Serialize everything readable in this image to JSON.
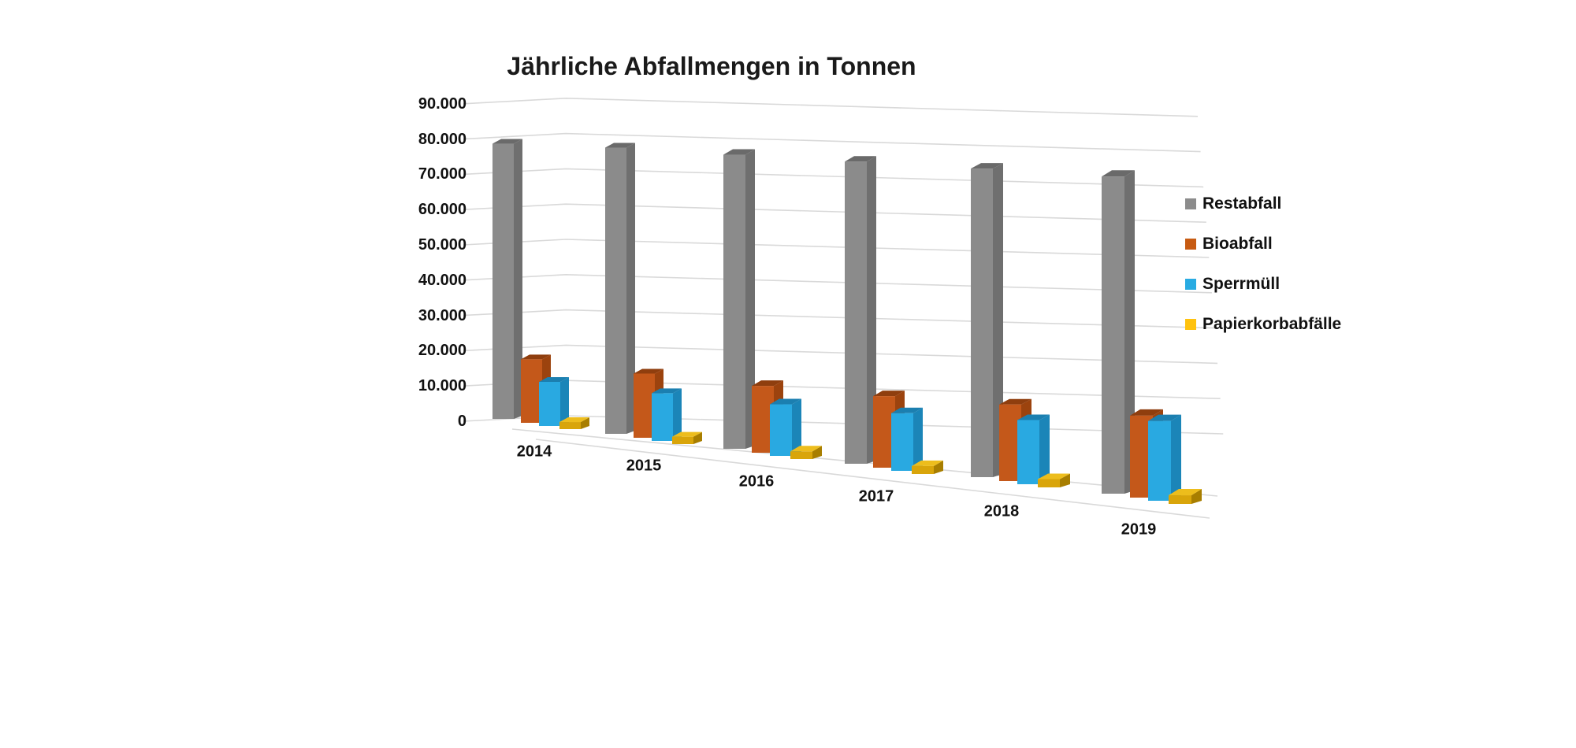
{
  "title": "Jährliche Abfallmengen in Tonnen",
  "chart_data": {
    "type": "bar",
    "subtype": "3d-clustered-column",
    "title": "Jährliche Abfallmengen in Tonnen",
    "xlabel": "",
    "ylabel": "",
    "unit": "Tonnen",
    "categories": [
      "2014",
      "2015",
      "2016",
      "2017",
      "2018",
      "2019"
    ],
    "series": [
      {
        "name": "Restabfall",
        "color": "#8B8B8B",
        "values": [
          78000,
          78000,
          77000,
          76000,
          74500,
          73500
        ]
      },
      {
        "name": "Bioabfall",
        "color": "#C4581A",
        "values": [
          18000,
          17500,
          17500,
          18000,
          18500,
          19000
        ]
      },
      {
        "name": "Sperrmüll",
        "color": "#29A9E1",
        "values": [
          12500,
          13000,
          13500,
          14500,
          15500,
          18500
        ]
      },
      {
        "name": "Papierkorbabfälle",
        "color": "#FFC20E",
        "values": [
          2000,
          2000,
          2000,
          2000,
          2000,
          2000
        ]
      }
    ],
    "ylim": [
      0,
      90000
    ],
    "ytick_step": 10000,
    "ytick_labels": [
      "0",
      "10.000",
      "20.000",
      "30.000",
      "40.000",
      "50.000",
      "60.000",
      "70.000",
      "80.000",
      "90.000"
    ],
    "grid": true,
    "legend_position": "right"
  },
  "colors": {
    "background": "#FFFFFF",
    "gridline": "#D9D9D9",
    "text": "#111111",
    "legend_swatches": [
      "#8C8C8C",
      "#C75B12",
      "#29ABE2",
      "#FFC20E"
    ]
  }
}
